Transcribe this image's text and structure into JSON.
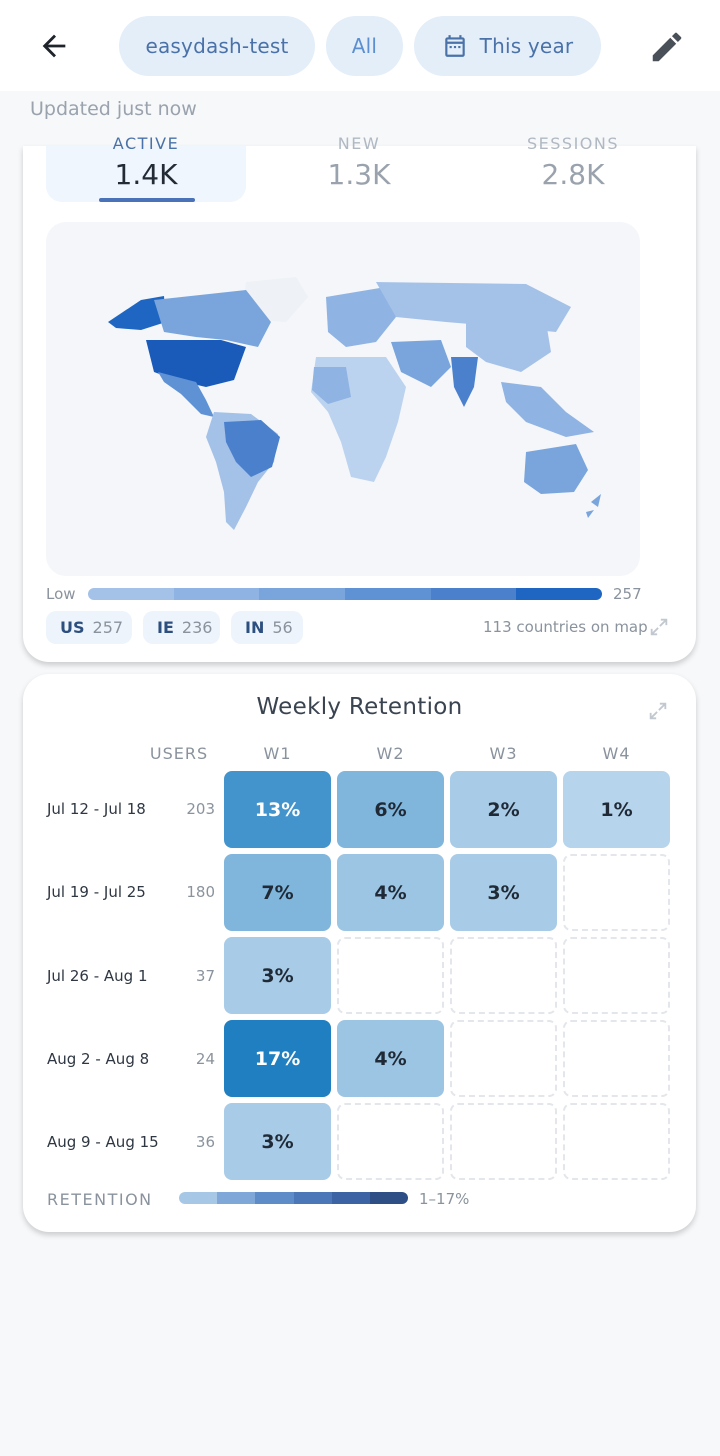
{
  "header": {
    "project": "easydash-test",
    "filter": "All",
    "date_range": "This year",
    "back_icon": "arrow-left-icon",
    "edit_icon": "pencil-icon",
    "calendar_icon": "calendar-icon"
  },
  "updated": "Updated just now",
  "metrics": [
    {
      "label": "ACTIVE",
      "value": "1.4K",
      "active": true
    },
    {
      "label": "NEW",
      "value": "1.3K",
      "active": false
    },
    {
      "label": "SESSIONS",
      "value": "2.8K",
      "active": false
    }
  ],
  "map": {
    "legend_low": "Low",
    "legend_high": "257",
    "legend_colors": [
      "#a4c1e8",
      "#8fb3e2",
      "#79a5dc",
      "#5f92d4",
      "#4a80cc",
      "#1f66c2"
    ],
    "top_countries": [
      {
        "code": "US",
        "count": "257"
      },
      {
        "code": "IE",
        "count": "236"
      },
      {
        "code": "IN",
        "count": "56"
      }
    ],
    "countries_note": "113 countries on map",
    "expand_icon": "expand-icon"
  },
  "retention": {
    "title": "Weekly Retention",
    "users_header": "USERS",
    "weeks": [
      "W1",
      "W2",
      "W3",
      "W4"
    ],
    "rows": [
      {
        "range": "Jul 12 - Jul 18",
        "users": "203",
        "values": [
          "13%",
          "6%",
          "2%",
          "1%"
        ]
      },
      {
        "range": "Jul 19 - Jul 25",
        "users": "180",
        "values": [
          "7%",
          "4%",
          "3%",
          ""
        ]
      },
      {
        "range": "Jul 26 - Aug 1",
        "users": "37",
        "values": [
          "3%",
          "",
          "",
          ""
        ]
      },
      {
        "range": "Aug 2 - Aug 8",
        "users": "24",
        "values": [
          "17%",
          "4%",
          "",
          ""
        ]
      },
      {
        "range": "Aug 9 - Aug 15",
        "users": "36",
        "values": [
          "3%",
          "",
          "",
          ""
        ]
      }
    ],
    "legend_label": "RETENTION",
    "legend_range": "1–17%",
    "legend_colors": [
      "#a6c8e6",
      "#7fa7d7",
      "#5e8cc8",
      "#4b77b8",
      "#3c64a4",
      "#2d4f86"
    ]
  }
}
